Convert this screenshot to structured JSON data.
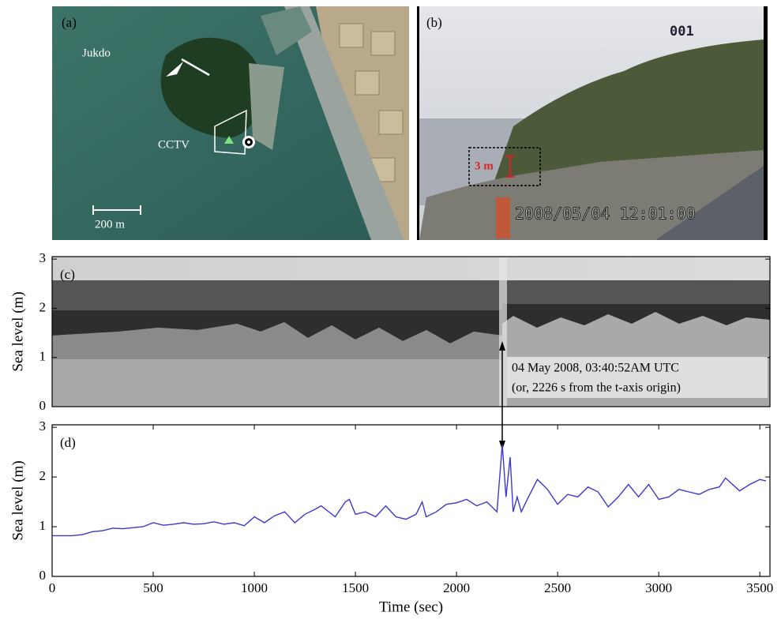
{
  "panels": {
    "a": {
      "label": "(a)",
      "place": "Jukdo",
      "camera": "CCTV",
      "scale": "200 m"
    },
    "b": {
      "label": "(b)",
      "channel": "001",
      "height": "3 m",
      "timestamp": "2008/05/04 12:01:00"
    }
  },
  "chart_data": [
    {
      "type": "image",
      "label": "(c)",
      "ylabel": "Sea level (m)",
      "xlim": [
        0,
        3550
      ],
      "ylim": [
        0,
        3.05
      ],
      "yticks": [
        0,
        1,
        2,
        3
      ],
      "annotation": {
        "x": 2226,
        "lines": [
          "04 May 2008, 03:40:52AM UTC",
          "(or, 2226 s from the t-axis origin)"
        ]
      }
    },
    {
      "type": "line",
      "label": "(d)",
      "xlabel": "Time (sec)",
      "ylabel": "Sea level (m)",
      "xlim": [
        0,
        3550
      ],
      "ylim": [
        0,
        3.05
      ],
      "xticks": [
        0,
        500,
        1000,
        1500,
        2000,
        2500,
        3000,
        3500
      ],
      "yticks": [
        0,
        1,
        2,
        3
      ],
      "series": [
        {
          "color": "#3a3acc",
          "x": [
            0,
            50,
            100,
            150,
            200,
            250,
            300,
            350,
            400,
            450,
            500,
            550,
            600,
            650,
            700,
            750,
            800,
            850,
            900,
            950,
            1000,
            1050,
            1100,
            1150,
            1200,
            1250,
            1300,
            1330,
            1400,
            1450,
            1470,
            1500,
            1550,
            1600,
            1650,
            1700,
            1750,
            1800,
            1830,
            1850,
            1900,
            1950,
            2000,
            2050,
            2100,
            2150,
            2200,
            2226,
            2245,
            2265,
            2280,
            2300,
            2320,
            2350,
            2400,
            2450,
            2500,
            2550,
            2600,
            2650,
            2700,
            2750,
            2800,
            2850,
            2900,
            2950,
            3000,
            3050,
            3100,
            3150,
            3200,
            3250,
            3300,
            3330,
            3400,
            3450,
            3500,
            3530
          ],
          "values": [
            0.82,
            0.82,
            0.82,
            0.84,
            0.9,
            0.92,
            0.97,
            0.96,
            0.98,
            1.0,
            1.08,
            1.03,
            1.05,
            1.08,
            1.05,
            1.06,
            1.1,
            1.05,
            1.08,
            1.02,
            1.2,
            1.08,
            1.22,
            1.3,
            1.08,
            1.25,
            1.35,
            1.42,
            1.2,
            1.5,
            1.55,
            1.25,
            1.3,
            1.2,
            1.42,
            1.2,
            1.15,
            1.25,
            1.5,
            1.2,
            1.3,
            1.45,
            1.48,
            1.55,
            1.42,
            1.5,
            1.3,
            2.65,
            1.6,
            2.4,
            1.3,
            1.6,
            1.3,
            1.55,
            1.95,
            1.75,
            1.45,
            1.65,
            1.6,
            1.8,
            1.7,
            1.4,
            1.6,
            1.85,
            1.6,
            1.85,
            1.55,
            1.6,
            1.75,
            1.7,
            1.65,
            1.75,
            1.8,
            1.98,
            1.72,
            1.85,
            1.95,
            1.92
          ]
        }
      ]
    }
  ]
}
